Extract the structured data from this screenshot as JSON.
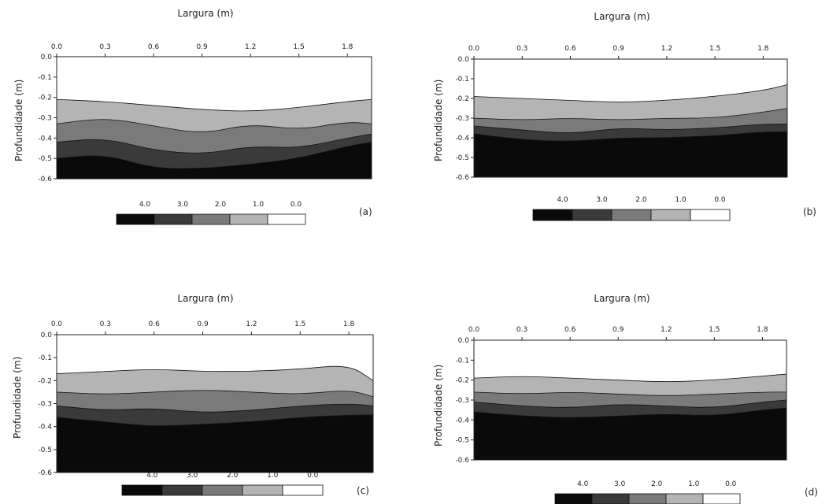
{
  "chart_data": [
    {
      "type": "heatmap",
      "panel_label": "(a)",
      "xlabel": "Largura (m)",
      "ylabel": "Profundidade (m)",
      "xlim": [
        0.0,
        1.95
      ],
      "ylim": [
        -0.6,
        0.0
      ],
      "x_ticks": [
        "0.0",
        "0.3",
        "0.6",
        "0.9",
        "1.2",
        "1.5",
        "1.8"
      ],
      "y_ticks": [
        "0.0",
        "-0.1",
        "-0.2",
        "-0.3",
        "-0.4",
        "-0.5",
        "-0.6"
      ],
      "legend_levels": [
        "4.0",
        "3.0",
        "2.0",
        "1.0",
        "0.0"
      ],
      "depth_profile": {
        "x": [
          0.0,
          0.3,
          0.6,
          0.9,
          1.2,
          1.5,
          1.8,
          1.95
        ],
        "contour_1_0": [
          -0.21,
          -0.22,
          -0.24,
          -0.26,
          -0.27,
          -0.25,
          -0.22,
          -0.21
        ],
        "contour_2_0": [
          -0.33,
          -0.3,
          -0.34,
          -0.38,
          -0.33,
          -0.36,
          -0.32,
          -0.33
        ],
        "contour_3_0": [
          -0.42,
          -0.4,
          -0.46,
          -0.48,
          -0.44,
          -0.45,
          -0.4,
          -0.38
        ],
        "contour_4_0": [
          -0.5,
          -0.48,
          -0.55,
          -0.55,
          -0.53,
          -0.5,
          -0.44,
          -0.42
        ]
      }
    },
    {
      "type": "heatmap",
      "panel_label": "(b)",
      "xlabel": "Largura (m)",
      "ylabel": "Profundidade (m)",
      "xlim": [
        0.0,
        1.95
      ],
      "ylim": [
        -0.6,
        0.0
      ],
      "x_ticks": [
        "0.0",
        "0.3",
        "0.6",
        "0.9",
        "1.2",
        "1.5",
        "1.8"
      ],
      "y_ticks": [
        "0.0",
        "-0.1",
        "-0.2",
        "-0.3",
        "-0.4",
        "-0.5",
        "-0.6"
      ],
      "legend_levels": [
        "4.0",
        "3.0",
        "2.0",
        "1.0",
        "0.0"
      ],
      "depth_profile": {
        "x": [
          0.0,
          0.3,
          0.6,
          0.9,
          1.2,
          1.5,
          1.8,
          1.95
        ],
        "contour_1_0": [
          -0.19,
          -0.2,
          -0.21,
          -0.22,
          -0.21,
          -0.19,
          -0.16,
          -0.13
        ],
        "contour_2_0": [
          -0.3,
          -0.31,
          -0.3,
          -0.31,
          -0.3,
          -0.3,
          -0.27,
          -0.25
        ],
        "contour_3_0": [
          -0.34,
          -0.36,
          -0.38,
          -0.35,
          -0.36,
          -0.35,
          -0.33,
          -0.33
        ],
        "contour_4_0": [
          -0.38,
          -0.41,
          -0.42,
          -0.4,
          -0.4,
          -0.39,
          -0.37,
          -0.37
        ]
      }
    },
    {
      "type": "heatmap",
      "panel_label": "(c)",
      "xlabel": "Largura (m)",
      "ylabel": "Profundidade (m)",
      "xlim": [
        0.0,
        1.95
      ],
      "ylim": [
        -0.6,
        0.0
      ],
      "x_ticks": [
        "0.0",
        "0.3",
        "0.6",
        "0.9",
        "1.2",
        "1.5",
        "1.8"
      ],
      "y_ticks": [
        "0.0",
        "-0.1",
        "-0.2",
        "-0.3",
        "-0.4",
        "-0.5",
        "-0.6"
      ],
      "legend_levels": [
        "4.0",
        "3.0",
        "2.0",
        "1.0",
        "0.0"
      ],
      "depth_profile": {
        "x": [
          0.0,
          0.3,
          0.6,
          0.9,
          1.2,
          1.5,
          1.8,
          1.95
        ],
        "contour_1_0": [
          -0.17,
          -0.16,
          -0.15,
          -0.16,
          -0.16,
          -0.15,
          -0.13,
          -0.2
        ],
        "contour_2_0": [
          -0.25,
          -0.26,
          -0.25,
          -0.24,
          -0.25,
          -0.26,
          -0.24,
          -0.27
        ],
        "contour_3_0": [
          -0.31,
          -0.33,
          -0.32,
          -0.34,
          -0.33,
          -0.31,
          -0.3,
          -0.31
        ],
        "contour_4_0": [
          -0.36,
          -0.38,
          -0.4,
          -0.39,
          -0.38,
          -0.36,
          -0.35,
          -0.35
        ]
      }
    },
    {
      "type": "heatmap",
      "panel_label": "(d)",
      "xlabel": "Largura (m)",
      "ylabel": "Profundidade (m)",
      "xlim": [
        0.0,
        1.95
      ],
      "ylim": [
        -0.6,
        0.0
      ],
      "x_ticks": [
        "0.0",
        "0.3",
        "0.6",
        "0.9",
        "1.2",
        "1.5",
        "1.8"
      ],
      "y_ticks": [
        "0.0",
        "-0.1",
        "-0.2",
        "-0.3",
        "-0.4",
        "-0.5",
        "-0.6"
      ],
      "legend_levels": [
        "4.0",
        "3.0",
        "2.0",
        "1.0",
        "0.0"
      ],
      "depth_profile": {
        "x": [
          0.0,
          0.3,
          0.6,
          0.9,
          1.2,
          1.5,
          1.8,
          1.95
        ],
        "contour_1_0": [
          -0.19,
          -0.18,
          -0.19,
          -0.2,
          -0.21,
          -0.2,
          -0.18,
          -0.17
        ],
        "contour_2_0": [
          -0.26,
          -0.27,
          -0.26,
          -0.27,
          -0.28,
          -0.27,
          -0.26,
          -0.26
        ],
        "contour_3_0": [
          -0.31,
          -0.33,
          -0.34,
          -0.32,
          -0.33,
          -0.34,
          -0.31,
          -0.3
        ],
        "contour_4_0": [
          -0.36,
          -0.38,
          -0.39,
          -0.38,
          -0.37,
          -0.38,
          -0.35,
          -0.34
        ]
      }
    }
  ],
  "colors": {
    "level_4_0": "#0a0a0a",
    "level_3_0": "#3a3a3a",
    "level_2_0": "#7a7a7a",
    "level_1_0": "#b4b4b4",
    "level_0_0": "#ffffff",
    "axis": "#222222"
  }
}
